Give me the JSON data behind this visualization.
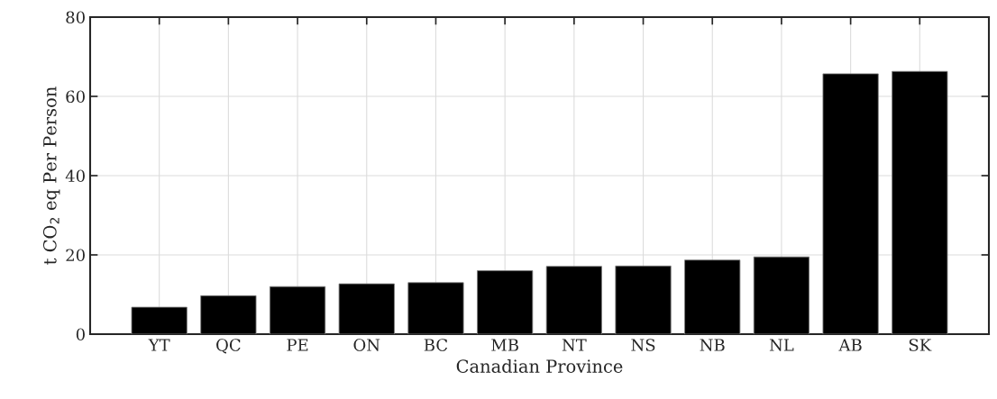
{
  "chart_data": {
    "type": "bar",
    "xlabel": "Canadian Province",
    "ylabel": "t CO$_{2}$ eq Per Person",
    "categories": [
      "YT",
      "QC",
      "PE",
      "ON",
      "BC",
      "MB",
      "NT",
      "NS",
      "NB",
      "NL",
      "AB",
      "SK"
    ],
    "values": [
      6.8,
      9.7,
      12.0,
      12.7,
      13.0,
      16.0,
      17.1,
      17.2,
      18.7,
      19.5,
      65.7,
      66.3
    ],
    "color": "#000000",
    "ylim": [
      0,
      80
    ],
    "yticks": [
      0,
      20,
      40,
      60,
      80
    ],
    "grid": true
  }
}
